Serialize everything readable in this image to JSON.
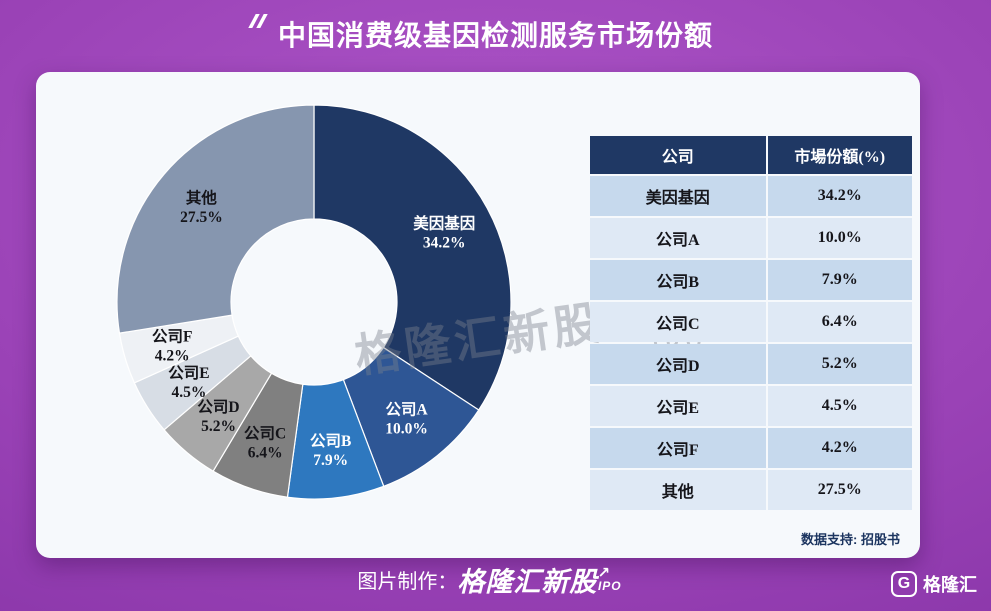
{
  "header": {
    "title": "中国消费级基因检测服务市场份额"
  },
  "chart_data": {
    "type": "pie",
    "subtype": "donut",
    "title": "中国消费级基因检测服务市场份额",
    "unit": "%",
    "start_angle_deg": 0,
    "direction": "clockwise",
    "inner_radius_ratio": 0.42,
    "legend": "none",
    "labels_on_slices": true,
    "series": [
      {
        "name": "美因基因",
        "value": 34.2,
        "color": "#1f3864",
        "label_color": "#ffffff"
      },
      {
        "name": "公司A",
        "value": 10.0,
        "color": "#2e5695",
        "label_color": "#ffffff"
      },
      {
        "name": "公司B",
        "value": 7.9,
        "color": "#2e78bf",
        "label_color": "#ffffff"
      },
      {
        "name": "公司C",
        "value": 6.4,
        "color": "#808080",
        "label_color": "#15151a"
      },
      {
        "name": "公司D",
        "value": 5.2,
        "color": "#a8a8a8",
        "label_color": "#15151a"
      },
      {
        "name": "公司E",
        "value": 4.5,
        "color": "#d7dde5",
        "label_color": "#15151a"
      },
      {
        "name": "公司F",
        "value": 4.2,
        "color": "#eef1f5",
        "label_color": "#15151a"
      },
      {
        "name": "其他",
        "value": 27.5,
        "color": "#8696af",
        "label_color": "#15151a"
      }
    ]
  },
  "table": {
    "headers": [
      "公司",
      "市場份額(%)"
    ],
    "rows": [
      [
        "美因基因",
        "34.2%"
      ],
      [
        "公司A",
        "10.0%"
      ],
      [
        "公司B",
        "7.9%"
      ],
      [
        "公司C",
        "6.4%"
      ],
      [
        "公司D",
        "5.2%"
      ],
      [
        "公司E",
        "4.5%"
      ],
      [
        "公司F",
        "4.2%"
      ],
      [
        "其他",
        "27.5%"
      ]
    ],
    "colors": {
      "header_bg": "#1f3864",
      "header_text": "#ffffff",
      "row_odd_bg": "#c6d9ed",
      "row_even_bg": "#dfe9f5",
      "cell_text": "#15151a"
    }
  },
  "watermark": {
    "text": "格隆汇新股",
    "arrow": "↗",
    "sub": "IPO"
  },
  "card": {
    "data_support": "数据支持: 招股书"
  },
  "footer": {
    "credit_prefix": "图片制作：",
    "brand": "格隆汇新股",
    "arrow": "↗",
    "brand_sub": "IPO"
  },
  "logo": {
    "letter": "G",
    "text": "格隆汇"
  },
  "colors": {
    "background_center": "#ae56c9",
    "background_edge": "#7c2c9e",
    "card_bg": "#f6f9fc",
    "accent_navy": "#1f3864"
  }
}
